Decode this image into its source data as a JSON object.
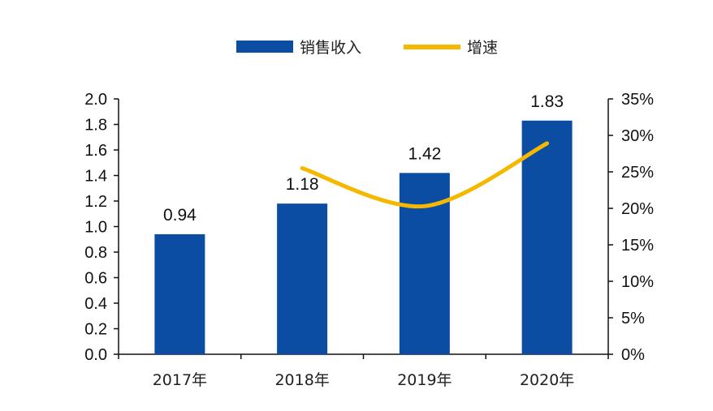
{
  "chart_data": {
    "type": "bar",
    "categories": [
      "2017年",
      "2018年",
      "2019年",
      "2020年"
    ],
    "series": [
      {
        "name": "销售收入",
        "type": "bar",
        "axis": "left",
        "color": "#0B4DA2",
        "values": [
          0.94,
          1.18,
          1.42,
          1.83
        ]
      },
      {
        "name": "增速",
        "type": "line",
        "axis": "right",
        "color": "#F5B800",
        "values": [
          null,
          0.255,
          0.203,
          0.289
        ]
      }
    ],
    "data_labels": [
      "0.94",
      "1.18",
      "1.42",
      "1.83"
    ],
    "y_left": {
      "ylim": [
        0,
        2.0
      ],
      "ticks": [
        "0.0",
        "0.2",
        "0.4",
        "0.6",
        "0.8",
        "1.0",
        "1.2",
        "1.4",
        "1.6",
        "1.8",
        "2.0"
      ]
    },
    "y_right": {
      "ylim": [
        0,
        0.35
      ],
      "ticks": [
        "0%",
        "5%",
        "10%",
        "15%",
        "20%",
        "25%",
        "30%",
        "35%"
      ]
    },
    "legend_position": "top-center",
    "grid": false,
    "title": "",
    "xlabel": "",
    "ylabel": ""
  }
}
